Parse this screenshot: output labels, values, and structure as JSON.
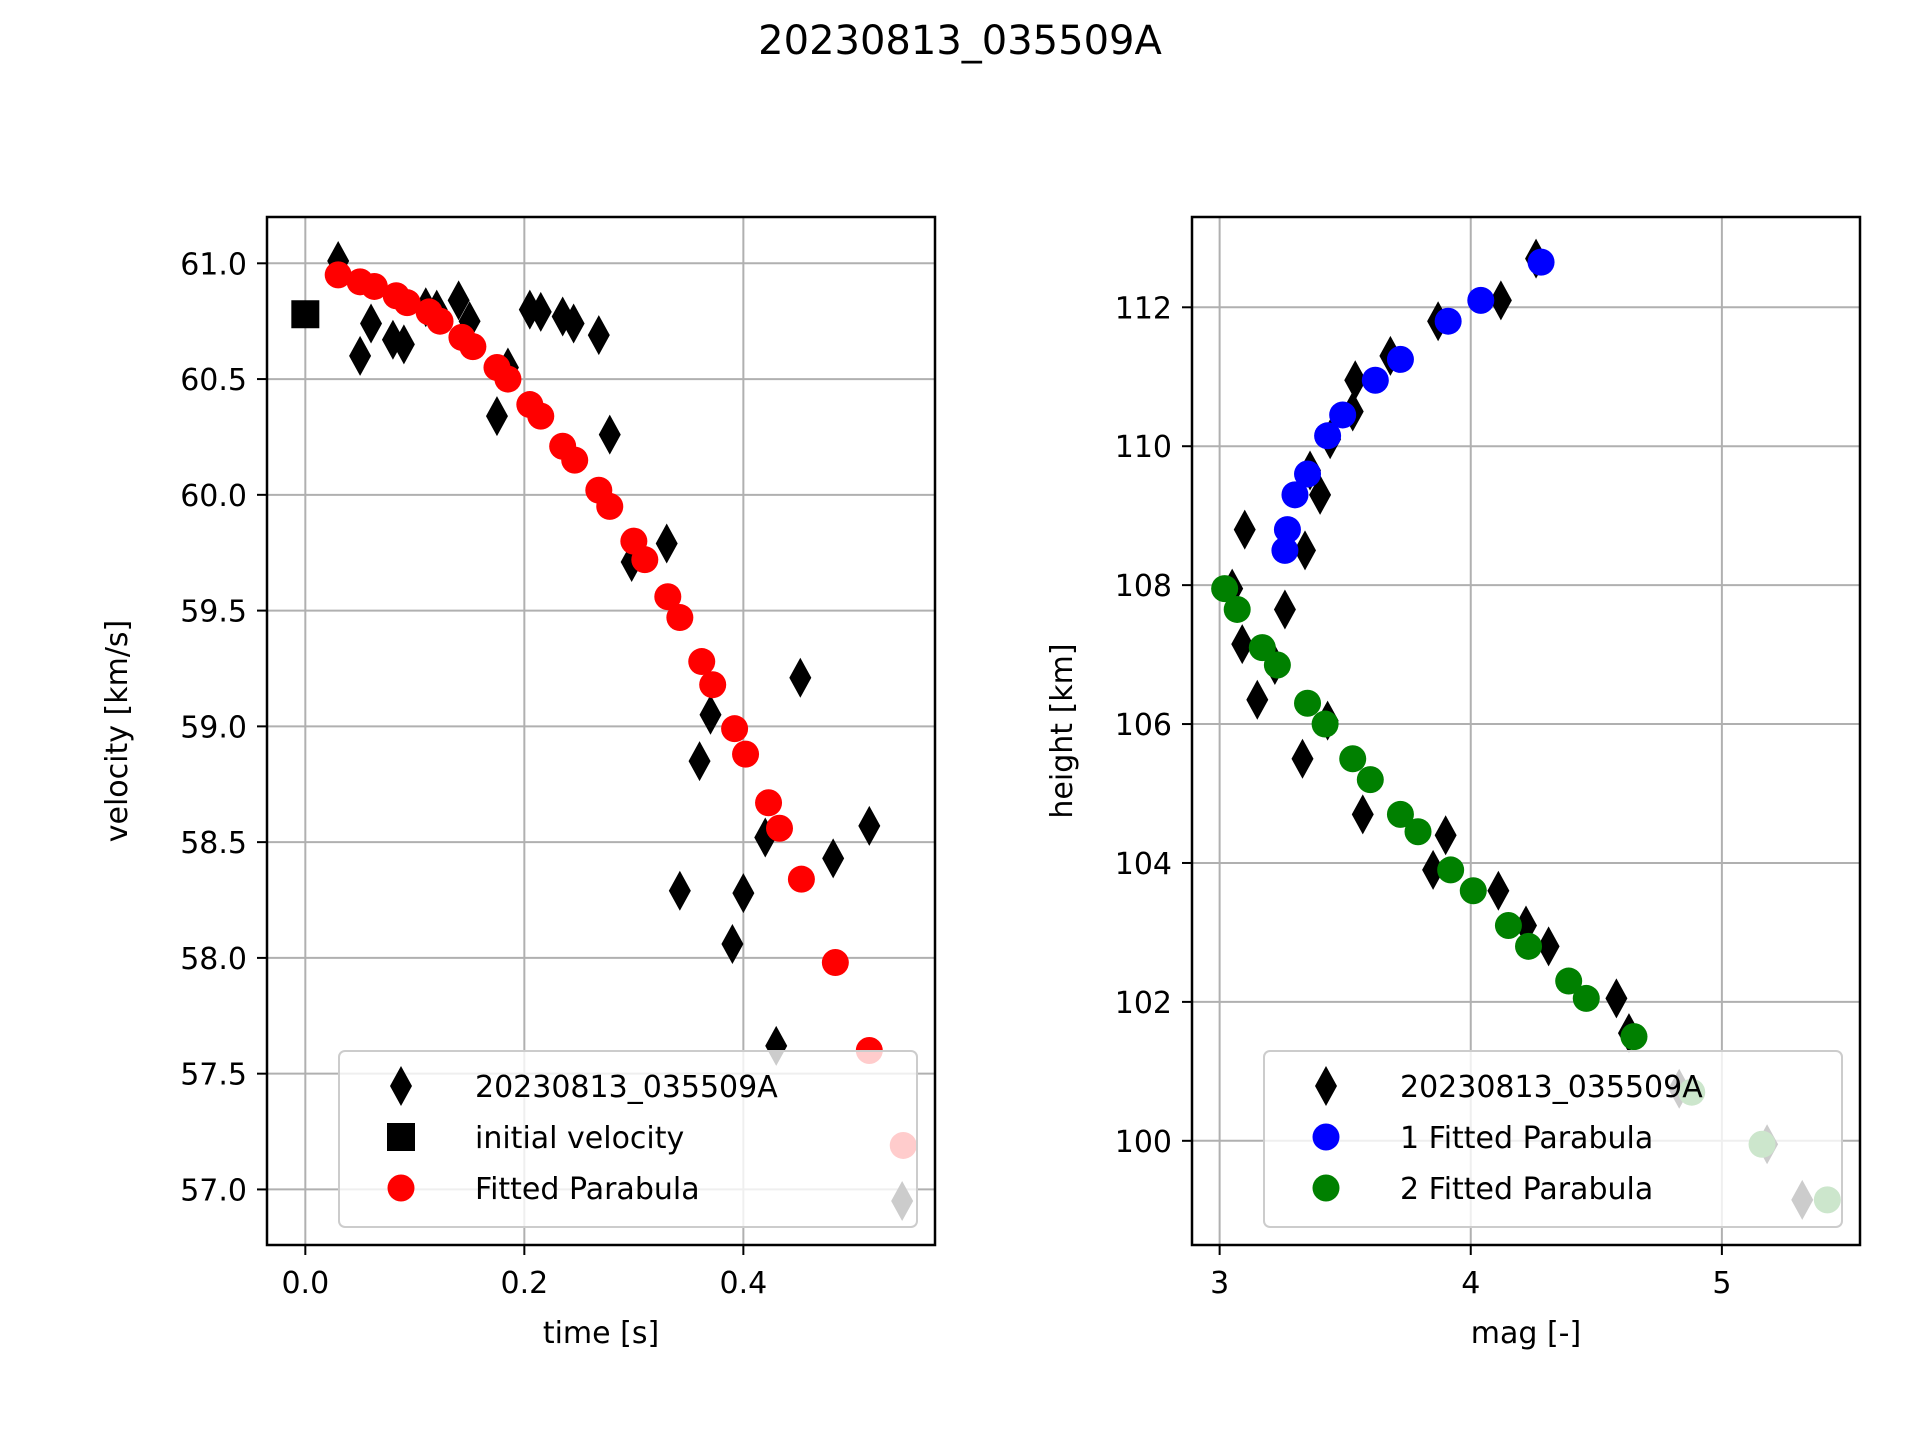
{
  "figure": {
    "title": "20230813_035509A"
  },
  "chart_data": [
    {
      "type": "scatter",
      "xlabel": "time [s]",
      "ylabel": "velocity [km/s]",
      "xlim": [
        -0.035,
        0.575
      ],
      "ylim": [
        56.76,
        61.2
      ],
      "xticks": [
        0.0,
        0.2,
        0.4
      ],
      "xtick_labels": [
        "0.0",
        "0.2",
        "0.4"
      ],
      "yticks": [
        57.0,
        57.5,
        58.0,
        58.5,
        59.0,
        59.5,
        60.0,
        60.5,
        61.0
      ],
      "ytick_labels": [
        "57.0",
        "57.5",
        "58.0",
        "58.5",
        "59.0",
        "59.5",
        "60.0",
        "60.5",
        "61.0"
      ],
      "grid": true,
      "legend_position": "lower-right",
      "series": [
        {
          "name": "20230813_035509A",
          "marker": "diamond",
          "color": "#000000",
          "points": [
            [
              0.03,
              61.01
            ],
            [
              0.05,
              60.6
            ],
            [
              0.06,
              60.74
            ],
            [
              0.08,
              60.67
            ],
            [
              0.09,
              60.65
            ],
            [
              0.11,
              60.81
            ],
            [
              0.12,
              60.8
            ],
            [
              0.14,
              60.84
            ],
            [
              0.15,
              60.75
            ],
            [
              0.175,
              60.34
            ],
            [
              0.185,
              60.55
            ],
            [
              0.205,
              60.8
            ],
            [
              0.215,
              60.79
            ],
            [
              0.235,
              60.77
            ],
            [
              0.245,
              60.74
            ],
            [
              0.268,
              60.69
            ],
            [
              0.278,
              60.26
            ],
            [
              0.298,
              59.71
            ],
            [
              0.33,
              59.79
            ],
            [
              0.342,
              58.29
            ],
            [
              0.36,
              58.85
            ],
            [
              0.37,
              59.05
            ],
            [
              0.39,
              58.06
            ],
            [
              0.4,
              58.28
            ],
            [
              0.42,
              58.52
            ],
            [
              0.43,
              57.62
            ],
            [
              0.452,
              59.21
            ],
            [
              0.482,
              58.43
            ],
            [
              0.515,
              58.57
            ],
            [
              0.545,
              56.95
            ]
          ]
        },
        {
          "name": "initial velocity",
          "marker": "square",
          "color": "#000000",
          "points": [
            [
              0.0,
              60.78
            ]
          ]
        },
        {
          "name": "Fitted Parabula",
          "marker": "circle",
          "color": "#ff0000",
          "points": [
            [
              0.03,
              60.95
            ],
            [
              0.05,
              60.92
            ],
            [
              0.063,
              60.9
            ],
            [
              0.083,
              60.86
            ],
            [
              0.093,
              60.83
            ],
            [
              0.113,
              60.79
            ],
            [
              0.123,
              60.75
            ],
            [
              0.143,
              60.68
            ],
            [
              0.153,
              60.64
            ],
            [
              0.175,
              60.55
            ],
            [
              0.185,
              60.5
            ],
            [
              0.205,
              60.39
            ],
            [
              0.215,
              60.34
            ],
            [
              0.235,
              60.21
            ],
            [
              0.246,
              60.15
            ],
            [
              0.268,
              60.02
            ],
            [
              0.278,
              59.95
            ],
            [
              0.3,
              59.8
            ],
            [
              0.31,
              59.72
            ],
            [
              0.331,
              59.56
            ],
            [
              0.342,
              59.47
            ],
            [
              0.362,
              59.28
            ],
            [
              0.372,
              59.18
            ],
            [
              0.392,
              58.99
            ],
            [
              0.402,
              58.88
            ],
            [
              0.423,
              58.67
            ],
            [
              0.433,
              58.56
            ],
            [
              0.453,
              58.34
            ],
            [
              0.484,
              57.98
            ],
            [
              0.515,
              57.6
            ],
            [
              0.546,
              57.19
            ]
          ]
        }
      ]
    },
    {
      "type": "scatter",
      "xlabel": "mag [-]",
      "ylabel": "height [km]",
      "xlim": [
        2.89,
        5.55
      ],
      "ylim": [
        98.5,
        113.3
      ],
      "xticks": [
        3,
        4,
        5
      ],
      "xtick_labels": [
        "3",
        "4",
        "5"
      ],
      "yticks": [
        100,
        102,
        104,
        106,
        108,
        110,
        112
      ],
      "ytick_labels": [
        "100",
        "102",
        "104",
        "106",
        "108",
        "110",
        "112"
      ],
      "grid": true,
      "legend_position": "lower-right",
      "series": [
        {
          "name": "20230813_035509A",
          "marker": "diamond",
          "color": "#000000",
          "points": [
            [
              4.26,
              112.7
            ],
            [
              4.12,
              112.1
            ],
            [
              3.87,
              111.8
            ],
            [
              3.68,
              111.3
            ],
            [
              3.54,
              110.95
            ],
            [
              3.53,
              110.5
            ],
            [
              3.44,
              110.1
            ],
            [
              3.36,
              109.65
            ],
            [
              3.4,
              109.3
            ],
            [
              3.34,
              108.5
            ],
            [
              3.1,
              108.8
            ],
            [
              3.05,
              107.95
            ],
            [
              3.26,
              107.65
            ],
            [
              3.09,
              107.15
            ],
            [
              3.22,
              106.85
            ],
            [
              3.15,
              106.35
            ],
            [
              3.43,
              106.05
            ],
            [
              3.33,
              105.5
            ],
            [
              3.57,
              104.7
            ],
            [
              3.9,
              104.4
            ],
            [
              3.85,
              103.9
            ],
            [
              4.11,
              103.6
            ],
            [
              4.22,
              103.1
            ],
            [
              4.31,
              102.8
            ],
            [
              4.58,
              102.05
            ],
            [
              4.63,
              101.55
            ],
            [
              4.83,
              100.75
            ],
            [
              5.18,
              99.95
            ],
            [
              5.32,
              99.15
            ]
          ]
        },
        {
          "name": "1 Fitted Parabula",
          "marker": "circle",
          "color": "#0000ff",
          "points": [
            [
              4.28,
              112.65
            ],
            [
              4.04,
              112.1
            ],
            [
              3.91,
              111.8
            ],
            [
              3.72,
              111.25
            ],
            [
              3.62,
              110.95
            ],
            [
              3.49,
              110.45
            ],
            [
              3.43,
              110.15
            ],
            [
              3.35,
              109.6
            ],
            [
              3.3,
              109.3
            ],
            [
              3.27,
              108.8
            ],
            [
              3.26,
              108.5
            ]
          ]
        },
        {
          "name": "2 Fitted Parabula",
          "marker": "circle",
          "color": "#008000",
          "points": [
            [
              3.02,
              107.95
            ],
            [
              3.07,
              107.65
            ],
            [
              3.17,
              107.1
            ],
            [
              3.23,
              106.85
            ],
            [
              3.35,
              106.3
            ],
            [
              3.42,
              106.0
            ],
            [
              3.53,
              105.5
            ],
            [
              3.6,
              105.2
            ],
            [
              3.72,
              104.7
            ],
            [
              3.79,
              104.45
            ],
            [
              3.92,
              103.9
            ],
            [
              4.01,
              103.6
            ],
            [
              4.15,
              103.1
            ],
            [
              4.23,
              102.8
            ],
            [
              4.39,
              102.3
            ],
            [
              4.46,
              102.05
            ],
            [
              4.65,
              101.5
            ],
            [
              4.88,
              100.7
            ],
            [
              5.16,
              99.95
            ],
            [
              5.42,
              99.15
            ]
          ]
        }
      ]
    }
  ]
}
